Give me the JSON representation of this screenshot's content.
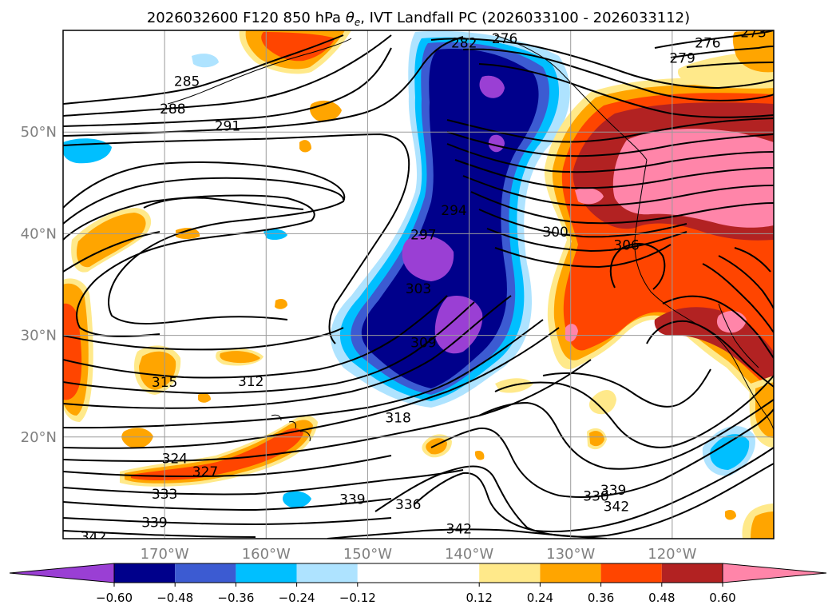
{
  "chart_data": {
    "type": "contour",
    "title": "2026032600 F120 850 hPa θe, IVT Landfall PC (2026033100 - 2026033112)",
    "title_parts": {
      "prefix": "2026032600 F120 850 hPa ",
      "symbol": "θ",
      "subscript": "e",
      "suffix": ", IVT Landfall PC (2026033100 - 2026033112)"
    },
    "map": {
      "lon_range": [
        -180,
        -110
      ],
      "lat_range": [
        10,
        60
      ],
      "lon_ticks": [
        -170,
        -160,
        -150,
        -140,
        -130,
        -120
      ],
      "lon_tick_labels": [
        "170°W",
        "160°W",
        "150°W",
        "140°W",
        "130°W",
        "120°W"
      ],
      "lat_ticks": [
        20,
        30,
        40,
        50
      ],
      "lat_tick_labels": [
        "20°N",
        "30°N",
        "40°N",
        "50°N"
      ],
      "grid": true
    },
    "colorbar": {
      "orientation": "horizontal",
      "extend": "both",
      "boundaries": [
        -0.72,
        -0.6,
        -0.48,
        -0.36,
        -0.24,
        -0.12,
        0.12,
        0.24,
        0.36,
        0.48,
        0.6,
        0.72
      ],
      "tick_values": [
        -0.6,
        -0.48,
        -0.36,
        -0.24,
        -0.12,
        0.12,
        0.24,
        0.36,
        0.48,
        0.6
      ],
      "tick_labels": [
        "−0.60",
        "−0.48",
        "−0.36",
        "−0.24",
        "−0.12",
        "0.12",
        "0.24",
        "0.36",
        "0.48",
        "0.60"
      ],
      "colors": [
        "#9a3fd4",
        "#00008b",
        "#3c5bd2",
        "#00bfff",
        "#aee3ff",
        "#ffffff",
        "#ffe98a",
        "#ffa500",
        "#ff4500",
        "#b22222",
        "#ff85a9"
      ],
      "under_color": "#9a3fd4",
      "over_color": "#ff85a9"
    },
    "shading": [
      {
        "name": "neg-core",
        "value": -0.6,
        "color": "#9a3fd4",
        "centers": [
          [
            -145,
            36
          ],
          [
            -141,
            32
          ],
          [
            -141,
            53
          ]
        ]
      },
      {
        "name": "neg-strong",
        "value": -0.48,
        "color": "#00008b",
        "centers": [
          [
            -142,
            46
          ],
          [
            -144,
            33
          ],
          [
            -141,
            52
          ]
        ]
      },
      {
        "name": "neg-weak",
        "value": -0.24,
        "color": "#00bfff",
        "centers": [
          [
            -175,
            49
          ],
          [
            -113,
            18
          ],
          [
            -157,
            14
          ]
        ]
      },
      {
        "name": "pos-peak",
        "value": 0.6,
        "color": "#ff85a9",
        "centers": [
          [
            -115,
            45
          ],
          [
            -124,
            42
          ]
        ]
      },
      {
        "name": "pos-strong",
        "value": 0.48,
        "color": "#b22222",
        "centers": [
          [
            -122,
            45
          ],
          [
            -125,
            32
          ],
          [
            -110,
            35
          ]
        ]
      },
      {
        "name": "pos-coast",
        "value": 0.36,
        "color": "#ff4500",
        "centers": [
          [
            -131,
            38
          ],
          [
            -165,
            18
          ],
          [
            -177,
            33
          ]
        ]
      },
      {
        "name": "pos-edge",
        "value": 0.24,
        "color": "#ffa500",
        "centers": [
          [
            -173,
            40
          ],
          [
            -170,
            30
          ],
          [
            -158,
            58
          ]
        ]
      }
    ],
    "contour_labels": [
      {
        "text": "276",
        "lon": -136.5,
        "lat": 59.2
      },
      {
        "text": "282",
        "lon": -140.5,
        "lat": 58.8
      },
      {
        "text": "276",
        "lon": -116.5,
        "lat": 58.8
      },
      {
        "text": "273",
        "lon": -112,
        "lat": 59.8
      },
      {
        "text": "279",
        "lon": -119,
        "lat": 57.3
      },
      {
        "text": "285",
        "lon": -167.8,
        "lat": 55.0
      },
      {
        "text": "288",
        "lon": -169.2,
        "lat": 52.3
      },
      {
        "text": "291",
        "lon": -163.8,
        "lat": 50.6
      },
      {
        "text": "294",
        "lon": -141.5,
        "lat": 42.3
      },
      {
        "text": "297",
        "lon": -144.5,
        "lat": 39.9
      },
      {
        "text": "300",
        "lon": -131.5,
        "lat": 40.2
      },
      {
        "text": "306",
        "lon": -124.5,
        "lat": 38.9
      },
      {
        "text": "303",
        "lon": -145.0,
        "lat": 34.6
      },
      {
        "text": "309",
        "lon": -144.5,
        "lat": 29.3
      },
      {
        "text": "315",
        "lon": -170.0,
        "lat": 25.4
      },
      {
        "text": "312",
        "lon": -161.5,
        "lat": 25.5
      },
      {
        "text": "318",
        "lon": -147.0,
        "lat": 21.9
      },
      {
        "text": "324",
        "lon": -169.0,
        "lat": 17.9
      },
      {
        "text": "327",
        "lon": -166.0,
        "lat": 16.6
      },
      {
        "text": "333",
        "lon": -170.0,
        "lat": 14.4
      },
      {
        "text": "339",
        "lon": -151.5,
        "lat": 13.9
      },
      {
        "text": "336",
        "lon": -146.0,
        "lat": 13.4
      },
      {
        "text": "339",
        "lon": -171.0,
        "lat": 11.6
      },
      {
        "text": "342",
        "lon": -177.0,
        "lat": 10.2
      },
      {
        "text": "342",
        "lon": -141.0,
        "lat": 11.0
      },
      {
        "text": "330",
        "lon": -127.5,
        "lat": 14.2
      },
      {
        "text": "339",
        "lon": -125.8,
        "lat": 14.8
      },
      {
        "text": "342",
        "lon": -125.5,
        "lat": 13.2
      }
    ]
  }
}
